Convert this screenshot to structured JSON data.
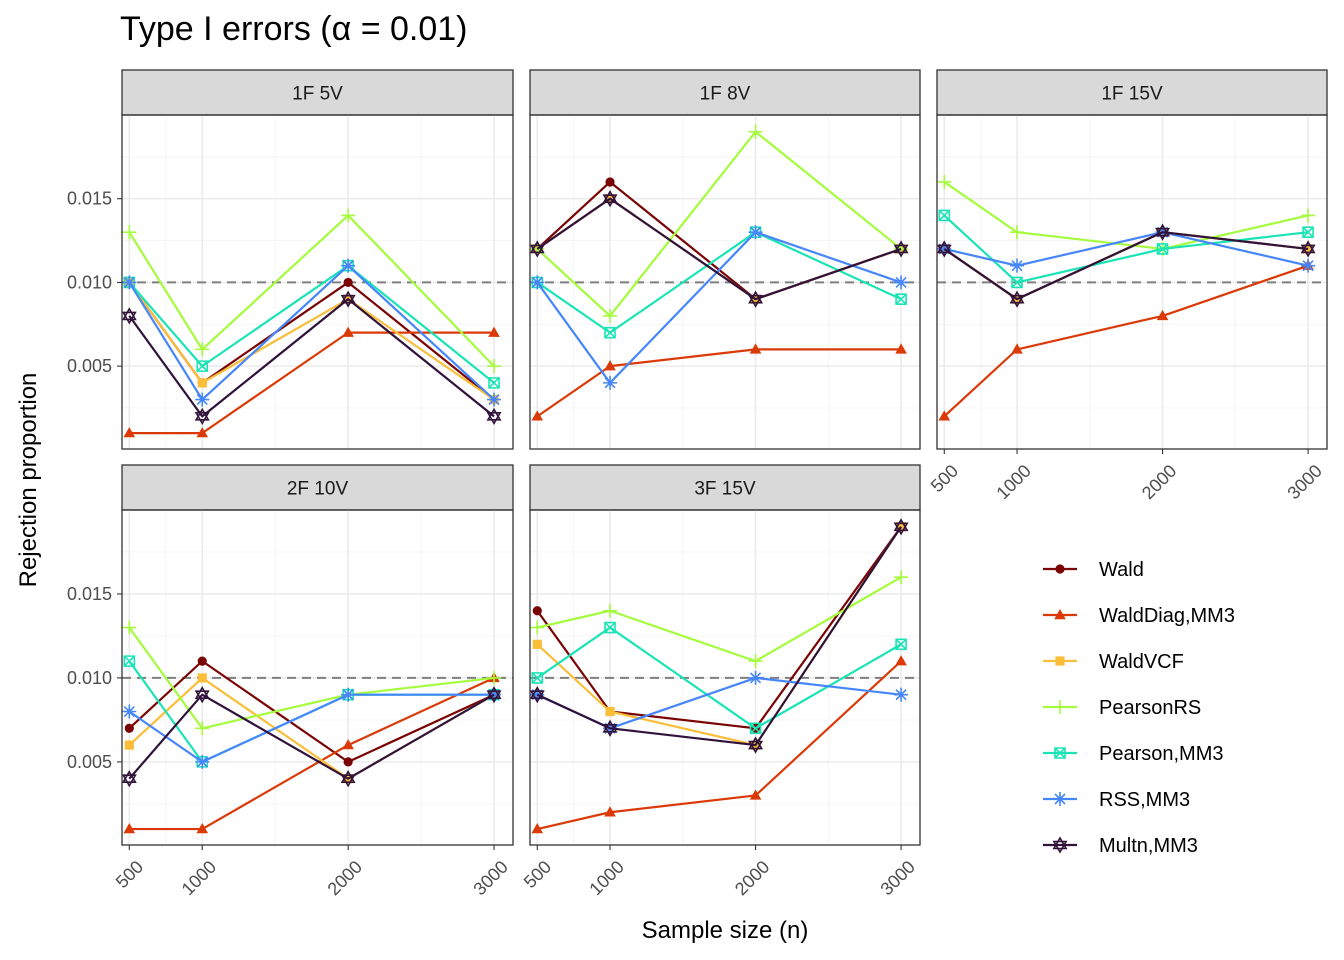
{
  "chart_data": {
    "type": "line",
    "title": "Type I errors (α = 0.01)",
    "xlabel": "Sample size (n)",
    "ylabel": "Rejection proportion",
    "x": [
      500,
      1000,
      2000,
      3000
    ],
    "x_ticks": [
      "500",
      "1000",
      "2000",
      "3000"
    ],
    "ylim": [
      0.0,
      0.02
    ],
    "y_ticks": [
      "0.005",
      "0.010",
      "0.015"
    ],
    "y_tick_values": [
      0.005,
      0.01,
      0.015
    ],
    "reference_line": 0.01,
    "grid": true,
    "legend_position": "right",
    "series_styles": [
      {
        "name": "Wald",
        "color": "#7a0403",
        "marker": "circle"
      },
      {
        "name": "WaldDiag,MM3",
        "color": "#db3a07",
        "marker": "triangle"
      },
      {
        "name": "WaldVCF",
        "color": "#fabe39",
        "marker": "square"
      },
      {
        "name": "PearsonRS",
        "color": "#a4fc3c",
        "marker": "plus"
      },
      {
        "name": "Pearson,MM3",
        "color": "#1ae4b6",
        "marker": "square-x"
      },
      {
        "name": "RSS,MM3",
        "color": "#4686fb",
        "marker": "asterisk"
      },
      {
        "name": "Multn,MM3",
        "color": "#30123b",
        "marker": "star"
      }
    ],
    "panels": [
      {
        "label": "1F 5V",
        "series": [
          {
            "name": "Wald",
            "values": [
              0.01,
              0.004,
              0.01,
              0.003
            ]
          },
          {
            "name": "WaldDiag,MM3",
            "values": [
              0.001,
              0.001,
              0.007,
              0.007
            ]
          },
          {
            "name": "WaldVCF",
            "values": [
              0.01,
              0.004,
              0.009,
              0.003
            ]
          },
          {
            "name": "PearsonRS",
            "values": [
              0.013,
              0.006,
              0.014,
              0.005
            ]
          },
          {
            "name": "Pearson,MM3",
            "values": [
              0.01,
              0.005,
              0.011,
              0.004
            ]
          },
          {
            "name": "RSS,MM3",
            "values": [
              0.01,
              0.003,
              0.011,
              0.003
            ]
          },
          {
            "name": "Multn,MM3",
            "values": [
              0.008,
              0.002,
              0.009,
              0.002
            ]
          }
        ]
      },
      {
        "label": "1F 8V",
        "series": [
          {
            "name": "Wald",
            "values": [
              0.012,
              0.016,
              0.009,
              0.012
            ]
          },
          {
            "name": "WaldDiag,MM3",
            "values": [
              0.002,
              0.005,
              0.006,
              0.006
            ]
          },
          {
            "name": "WaldVCF",
            "values": [
              0.012,
              0.015,
              0.009,
              0.012
            ]
          },
          {
            "name": "PearsonRS",
            "values": [
              0.012,
              0.008,
              0.019,
              0.012
            ]
          },
          {
            "name": "Pearson,MM3",
            "values": [
              0.01,
              0.007,
              0.013,
              0.009
            ]
          },
          {
            "name": "RSS,MM3",
            "values": [
              0.01,
              0.004,
              0.013,
              0.01
            ]
          },
          {
            "name": "Multn,MM3",
            "values": [
              0.012,
              0.015,
              0.009,
              0.012
            ]
          }
        ]
      },
      {
        "label": "1F 15V",
        "series": [
          {
            "name": "Wald",
            "values": [
              0.012,
              0.009,
              0.013,
              0.012
            ]
          },
          {
            "name": "WaldDiag,MM3",
            "values": [
              0.002,
              0.006,
              0.008,
              0.011
            ]
          },
          {
            "name": "WaldVCF",
            "values": [
              0.012,
              0.009,
              0.013,
              0.012
            ]
          },
          {
            "name": "PearsonRS",
            "values": [
              0.016,
              0.013,
              0.012,
              0.014
            ]
          },
          {
            "name": "Pearson,MM3",
            "values": [
              0.014,
              0.01,
              0.012,
              0.013
            ]
          },
          {
            "name": "RSS,MM3",
            "values": [
              0.012,
              0.011,
              0.013,
              0.011
            ]
          },
          {
            "name": "Multn,MM3",
            "values": [
              0.012,
              0.009,
              0.013,
              0.012
            ]
          }
        ]
      },
      {
        "label": "2F 10V",
        "series": [
          {
            "name": "Wald",
            "values": [
              0.007,
              0.011,
              0.005,
              0.009
            ]
          },
          {
            "name": "WaldDiag,MM3",
            "values": [
              0.001,
              0.001,
              0.006,
              0.01
            ]
          },
          {
            "name": "WaldVCF",
            "values": [
              0.006,
              0.01,
              0.004,
              0.009
            ]
          },
          {
            "name": "PearsonRS",
            "values": [
              0.013,
              0.007,
              0.009,
              0.01
            ]
          },
          {
            "name": "Pearson,MM3",
            "values": [
              0.011,
              0.005,
              0.009,
              0.009
            ]
          },
          {
            "name": "RSS,MM3",
            "values": [
              0.008,
              0.005,
              0.009,
              0.009
            ]
          },
          {
            "name": "Multn,MM3",
            "values": [
              0.004,
              0.009,
              0.004,
              0.009
            ]
          }
        ]
      },
      {
        "label": "3F 15V",
        "series": [
          {
            "name": "Wald",
            "values": [
              0.014,
              0.008,
              0.007,
              0.019
            ]
          },
          {
            "name": "WaldDiag,MM3",
            "values": [
              0.001,
              0.002,
              0.003,
              0.011
            ]
          },
          {
            "name": "WaldVCF",
            "values": [
              0.012,
              0.008,
              0.006,
              0.019
            ]
          },
          {
            "name": "PearsonRS",
            "values": [
              0.013,
              0.014,
              0.011,
              0.016
            ]
          },
          {
            "name": "Pearson,MM3",
            "values": [
              0.01,
              0.013,
              0.007,
              0.012
            ]
          },
          {
            "name": "RSS,MM3",
            "values": [
              0.009,
              0.007,
              0.01,
              0.009
            ]
          },
          {
            "name": "Multn,MM3",
            "values": [
              0.009,
              0.007,
              0.006,
              0.019
            ]
          }
        ]
      }
    ]
  }
}
